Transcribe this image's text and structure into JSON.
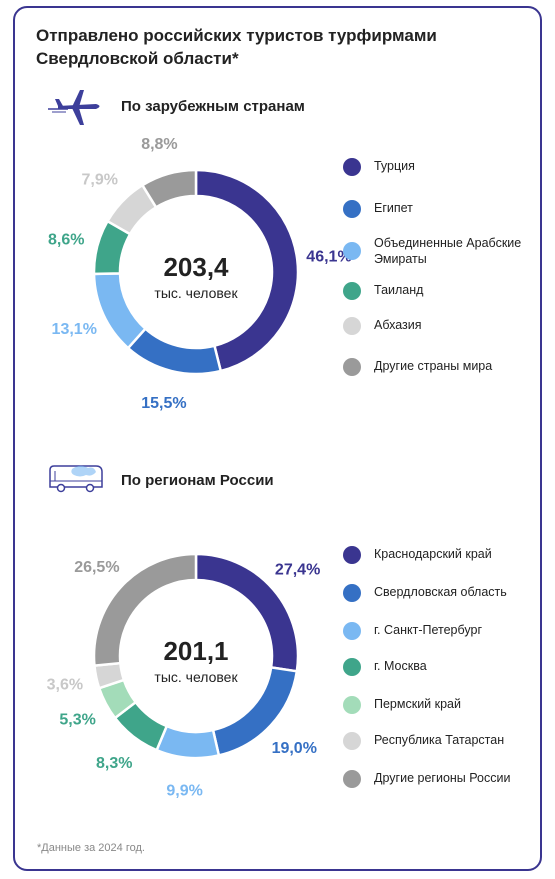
{
  "title": "Отправлено российских туристов турфирмами Свердловской области*",
  "footnote": "*Данные за 2024 год.",
  "colors": {
    "border": "#3a3590",
    "icon": "#3d3f9b"
  },
  "chart_data": [
    {
      "type": "pie",
      "section_title": "По зарубежным странам",
      "icon": "airplane-icon",
      "center_value": "203,4",
      "center_label": "тыс. человек",
      "categories": [
        "Турция",
        "Египет",
        "Объединенные Арабские Эмираты",
        "Таиланд",
        "Абхазия",
        "Другие страны мира"
      ],
      "values": [
        46.1,
        15.5,
        13.1,
        8.6,
        7.9,
        8.8
      ],
      "value_labels": [
        "46,1%",
        "15,5%",
        "13,1%",
        "8,6%",
        "7,9%",
        "8,8%"
      ],
      "colors": [
        "#3a3590",
        "#3570c4",
        "#7ab8f2",
        "#3fa58a",
        "#d6d6d6",
        "#9a9a9a"
      ],
      "label_colors": [
        "#3a3590",
        "#3570c4",
        "#7ab8f2",
        "#3fa58a",
        "#c8c8c8",
        "#9a9a9a"
      ],
      "legend_position": "right"
    },
    {
      "type": "pie",
      "section_title": "По регионам России",
      "icon": "bus-icon",
      "center_value": "201,1",
      "center_label": "тыс. человек",
      "categories": [
        "Краснодарский край",
        "Свердловская область",
        "г. Санкт-Петербург",
        "г. Москва",
        "Пермский край",
        "Республика Татарстан",
        "Другие регионы России"
      ],
      "values": [
        27.4,
        19.0,
        9.9,
        8.3,
        5.3,
        3.6,
        26.5
      ],
      "value_labels": [
        "27,4%",
        "19,0%",
        "9,9%",
        "8,3%",
        "5,3%",
        "3,6%",
        "26,5%"
      ],
      "colors": [
        "#3a3590",
        "#3570c4",
        "#7ab8f2",
        "#3fa58a",
        "#a3dcb9",
        "#d6d6d6",
        "#9a9a9a"
      ],
      "label_colors": [
        "#3a3590",
        "#3570c4",
        "#7ab8f2",
        "#3fa58a",
        "#3fa58a",
        "#c8c8c8",
        "#9a9a9a"
      ],
      "legend_position": "right"
    }
  ]
}
